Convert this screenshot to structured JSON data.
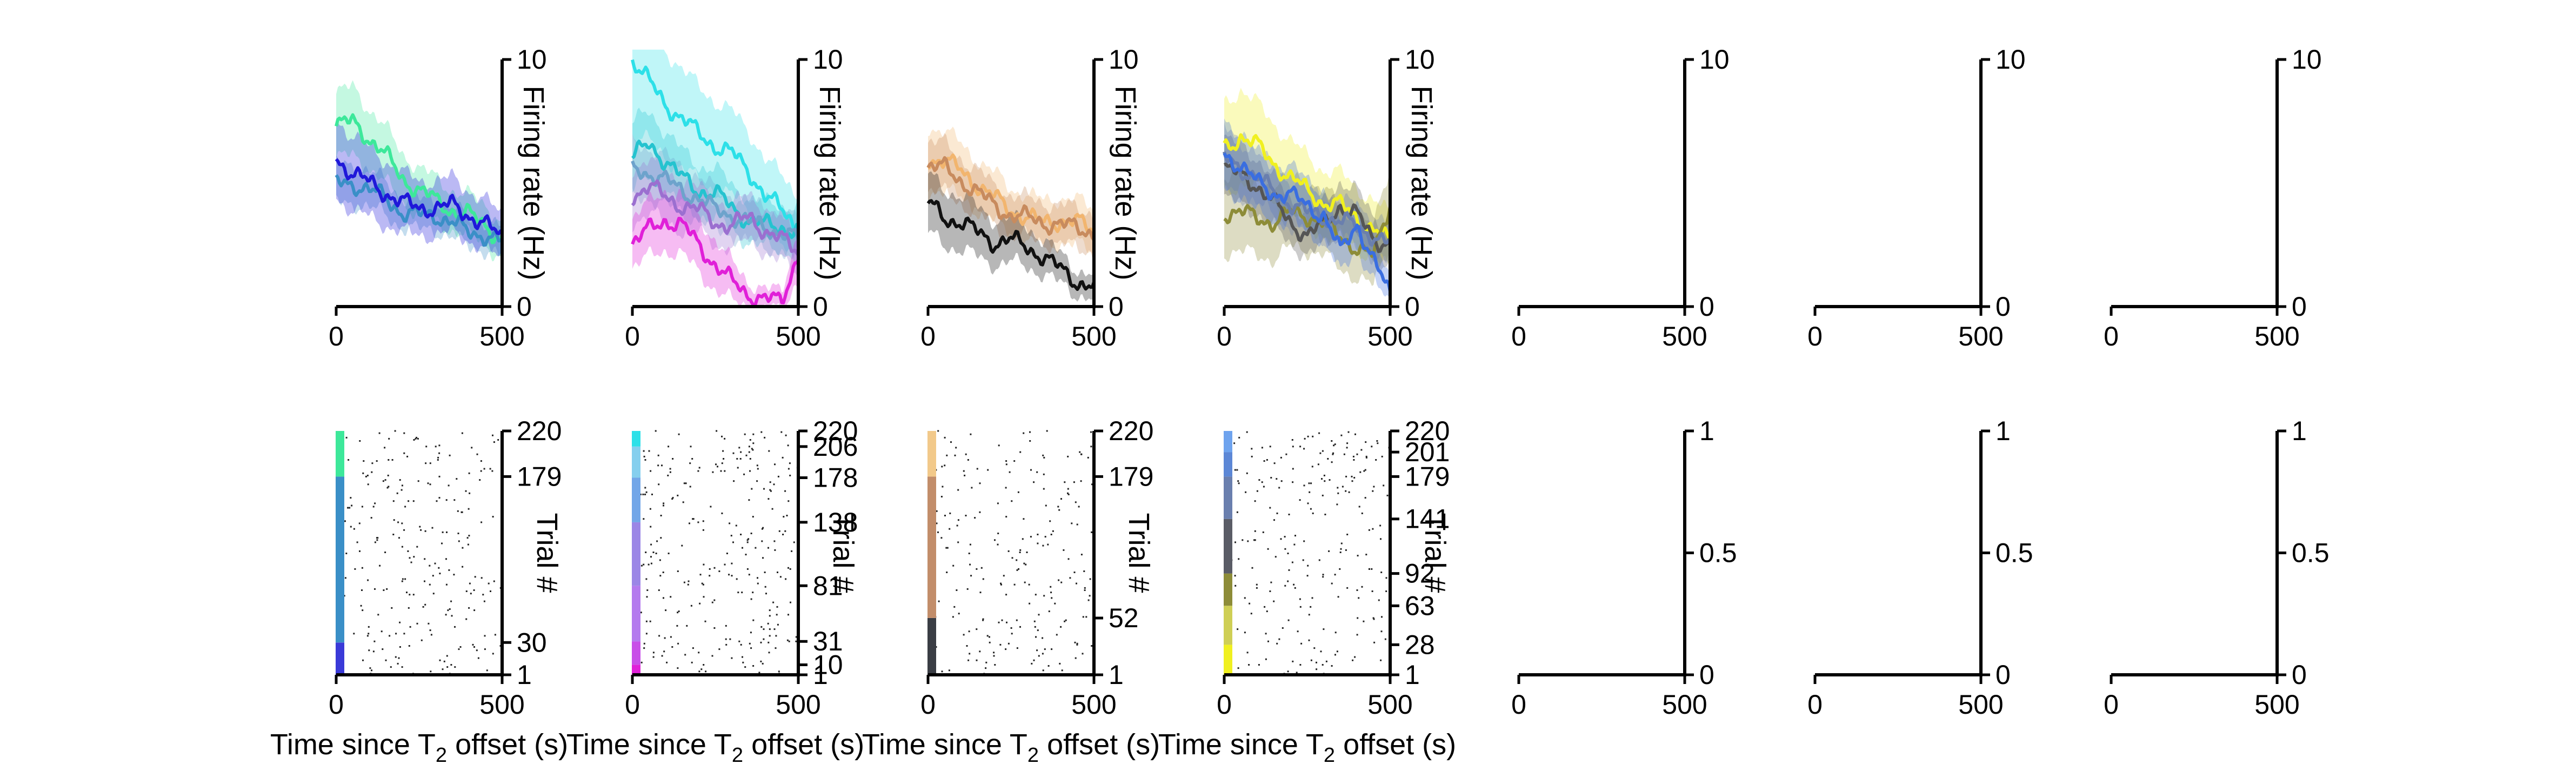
{
  "figure": {
    "firing_rate_ylabel": "Firing rate (Hz)",
    "trial_ylabel": "Trial #",
    "xlabel_main": "Time since T",
    "xlabel_sub": "2",
    "xlabel_tail": " offset (s)"
  },
  "chart_data": [
    {
      "type": "line",
      "panel": "rate-1",
      "xlim": [
        0,
        500
      ],
      "ylim": [
        0,
        10
      ],
      "xticks": [
        0,
        500
      ],
      "yticks": [
        0,
        10
      ],
      "ylabel": "Firing rate (Hz)",
      "x": [
        0,
        50,
        100,
        150,
        200,
        250,
        300,
        350,
        400,
        450,
        500
      ],
      "series": [
        {
          "name": "s1",
          "color": "#3de89a",
          "values": [
            7.3,
            7.5,
            6.8,
            6.1,
            5.2,
            4.7,
            4.3,
            3.9,
            3.7,
            3.3,
            2.7
          ],
          "ci": [
            1.3,
            1.4,
            1.2,
            1.1,
            1.0,
            0.9,
            0.9,
            0.8,
            0.8,
            0.8,
            0.7
          ]
        },
        {
          "name": "s2",
          "color": "#3a8fc7",
          "values": [
            5.0,
            5.0,
            4.7,
            4.4,
            3.8,
            3.7,
            3.7,
            3.4,
            3.0,
            2.9,
            2.6
          ],
          "ci": [
            0.8,
            0.8,
            0.7,
            0.7,
            0.6,
            0.6,
            0.6,
            0.6,
            0.6,
            0.6,
            0.6
          ]
        },
        {
          "name": "s3",
          "color": "#1f18d9",
          "values": [
            6.0,
            5.4,
            5.0,
            4.6,
            4.2,
            4.0,
            4.0,
            4.1,
            3.7,
            3.3,
            2.8
          ],
          "ci": [
            1.6,
            1.5,
            1.4,
            1.3,
            1.2,
            1.1,
            1.1,
            1.1,
            1.0,
            1.0,
            0.9
          ]
        }
      ]
    },
    {
      "type": "line",
      "panel": "rate-2",
      "xlim": [
        0,
        500
      ],
      "ylim": [
        0,
        10
      ],
      "xticks": [
        0,
        500
      ],
      "yticks": [
        0,
        10
      ],
      "ylabel": "Firing rate (Hz)",
      "x": [
        0,
        50,
        100,
        150,
        200,
        250,
        300,
        350,
        400,
        450,
        500
      ],
      "series": [
        {
          "name": "s1",
          "color": "#2de0e8",
          "values": [
            10.0,
            9.1,
            8.2,
            7.6,
            7.0,
            6.5,
            6.2,
            5.5,
            4.5,
            3.9,
            3.2
          ],
          "ci": [
            3.0,
            2.4,
            2.2,
            2.0,
            1.9,
            1.8,
            1.7,
            1.6,
            1.5,
            1.4,
            1.3
          ]
        },
        {
          "name": "s2",
          "color": "#25c3cf",
          "values": [
            6.0,
            6.6,
            5.9,
            5.2,
            4.7,
            4.6,
            4.0,
            3.5,
            3.3,
            3.2,
            3.1
          ],
          "ci": [
            1.4,
            1.3,
            1.2,
            1.1,
            1.0,
            1.0,
            0.9,
            0.9,
            0.9,
            0.9,
            0.9
          ]
        },
        {
          "name": "s3",
          "color": "#6da3cc",
          "values": [
            5.6,
            5.4,
            5.1,
            4.7,
            4.4,
            3.9,
            3.7,
            3.4,
            3.2,
            3.0,
            2.7
          ],
          "ci": [
            1.1,
            1.0,
            1.0,
            0.9,
            0.9,
            0.8,
            0.8,
            0.8,
            0.8,
            0.8,
            0.8
          ]
        },
        {
          "name": "s4",
          "color": "#9b6fd0",
          "values": [
            4.5,
            4.9,
            4.4,
            4.1,
            3.9,
            3.4,
            3.3,
            3.6,
            3.1,
            2.7,
            2.2
          ],
          "ci": [
            1.1,
            1.1,
            1.0,
            1.0,
            0.9,
            0.9,
            0.9,
            0.9,
            0.9,
            0.9,
            0.9
          ]
        },
        {
          "name": "s5",
          "color": "#e020d8",
          "values": [
            2.6,
            3.1,
            3.5,
            3.3,
            2.5,
            1.7,
            1.0,
            0.5,
            0.3,
            0.2,
            2.2
          ],
          "ci": [
            1.0,
            1.1,
            1.2,
            1.2,
            1.1,
            1.0,
            0.8,
            0.5,
            0.4,
            0.4,
            1.0
          ]
        }
      ]
    },
    {
      "type": "line",
      "panel": "rate-3",
      "xlim": [
        0,
        500
      ],
      "ylim": [
        0,
        10
      ],
      "xticks": [
        0,
        500
      ],
      "yticks": [
        0,
        10
      ],
      "ylabel": "Firing rate (Hz)",
      "x": [
        0,
        50,
        100,
        150,
        200,
        250,
        300,
        350,
        400,
        450,
        500
      ],
      "series": [
        {
          "name": "s1",
          "color": "#f2b56e",
          "values": [
            6.0,
            5.9,
            5.5,
            4.9,
            4.4,
            3.9,
            3.6,
            3.4,
            3.5,
            3.4,
            3.1
          ],
          "ci": [
            1.3,
            1.2,
            1.1,
            1.0,
            1.0,
            0.9,
            0.9,
            0.9,
            0.9,
            0.9,
            0.9
          ]
        },
        {
          "name": "s2",
          "color": "#c88b5e",
          "values": [
            5.7,
            5.6,
            5.1,
            4.6,
            4.1,
            3.7,
            3.6,
            3.4,
            3.3,
            3.2,
            3.0
          ],
          "ci": [
            1.0,
            1.0,
            0.9,
            0.9,
            0.8,
            0.8,
            0.8,
            0.8,
            0.8,
            0.8,
            0.8
          ]
        },
        {
          "name": "s3",
          "color": "#111111",
          "values": [
            4.2,
            3.6,
            3.4,
            3.0,
            2.6,
            2.7,
            2.4,
            2.0,
            1.5,
            1.0,
            0.8
          ],
          "ci": [
            1.2,
            1.1,
            1.1,
            1.0,
            0.9,
            0.9,
            0.8,
            0.7,
            0.6,
            0.5,
            0.5
          ]
        }
      ]
    },
    {
      "type": "line",
      "panel": "rate-4",
      "xlim": [
        0,
        500
      ],
      "ylim": [
        0,
        10
      ],
      "xticks": [
        0,
        500
      ],
      "yticks": [
        0,
        10
      ],
      "ylabel": "Firing rate (Hz)",
      "x": [
        0,
        50,
        100,
        150,
        200,
        250,
        300,
        350,
        400,
        450,
        500
      ],
      "series": [
        {
          "name": "s1",
          "color": "#f0f020",
          "values": [
            6.4,
            6.9,
            6.5,
            5.8,
            5.2,
            4.7,
            4.2,
            4.1,
            3.6,
            3.1,
            2.6
          ],
          "ci": [
            1.8,
            1.9,
            1.7,
            1.6,
            1.5,
            1.4,
            1.3,
            1.3,
            1.2,
            1.2,
            1.1
          ]
        },
        {
          "name": "s2",
          "color": "#8d8c38",
          "values": [
            3.8,
            3.8,
            3.6,
            3.4,
            3.8,
            3.7,
            3.4,
            2.8,
            2.4,
            2.0,
            4.2
          ],
          "ci": [
            1.6,
            1.6,
            1.5,
            1.5,
            1.4,
            1.4,
            1.3,
            1.3,
            1.2,
            1.2,
            1.6
          ]
        },
        {
          "name": "s3",
          "color": "#555555",
          "values": [
            5.6,
            5.3,
            4.9,
            4.2,
            3.4,
            2.9,
            3.3,
            4.1,
            3.7,
            2.7,
            2.6
          ],
          "ci": [
            1.2,
            1.2,
            1.1,
            1.0,
            0.9,
            0.8,
            0.9,
            1.0,
            1.0,
            0.9,
            0.9
          ]
        },
        {
          "name": "s4",
          "color": "#6a7fae",
          "values": [
            6.0,
            5.6,
            5.2,
            4.6,
            4.2,
            3.8,
            3.6,
            3.5,
            3.2,
            2.9,
            2.5
          ],
          "ci": [
            1.2,
            1.1,
            1.0,
            1.0,
            0.9,
            0.9,
            0.9,
            0.8,
            0.8,
            0.8,
            0.8
          ]
        },
        {
          "name": "s5",
          "color": "#3a6ee0",
          "values": [
            6.2,
            5.7,
            5.0,
            4.6,
            4.5,
            4.1,
            3.7,
            2.2,
            3.4,
            1.8,
            0.5
          ],
          "ci": [
            1.4,
            1.3,
            1.2,
            1.2,
            1.1,
            1.1,
            1.0,
            0.9,
            1.0,
            0.8,
            0.5
          ]
        }
      ]
    },
    {
      "type": "line",
      "panel": "rate-5",
      "xlim": [
        0,
        500
      ],
      "ylim": [
        0,
        10
      ],
      "xticks": [
        0,
        500
      ],
      "yticks": [
        0,
        10
      ],
      "series": []
    },
    {
      "type": "line",
      "panel": "rate-6",
      "xlim": [
        0,
        500
      ],
      "ylim": [
        0,
        10
      ],
      "xticks": [
        0,
        500
      ],
      "yticks": [
        0,
        10
      ],
      "series": []
    },
    {
      "type": "line",
      "panel": "rate-7",
      "xlim": [
        0,
        500
      ],
      "ylim": [
        0,
        10
      ],
      "xticks": [
        0,
        500
      ],
      "yticks": [
        0,
        10
      ],
      "series": []
    },
    {
      "type": "scatter",
      "panel": "raster-1",
      "xlim": [
        0,
        500
      ],
      "ylim": [
        1,
        220
      ],
      "xticks": [
        0,
        500
      ],
      "yticks": [
        1,
        30,
        179,
        220
      ],
      "ylabel": "Trial #",
      "xlabel": "Time since T2 offset (s)",
      "n_trials": 220,
      "spikes_per_trial": 1.1,
      "trial_groups": [
        {
          "from": 1,
          "to": 30,
          "color": "#3a3ad8"
        },
        {
          "from": 30,
          "to": 179,
          "color": "#3a8fc7"
        },
        {
          "from": 179,
          "to": 220,
          "color": "#3de89a"
        }
      ]
    },
    {
      "type": "scatter",
      "panel": "raster-2",
      "xlim": [
        0,
        500
      ],
      "ylim": [
        1,
        220
      ],
      "xticks": [
        0,
        500
      ],
      "yticks": [
        1,
        10,
        31,
        81,
        138,
        178,
        206,
        220
      ],
      "ylabel": "Trial #",
      "xlabel": "Time since T2 offset (s)",
      "n_trials": 220,
      "spikes_per_trial": 1.3,
      "trial_groups": [
        {
          "from": 1,
          "to": 10,
          "color": "#e020d8"
        },
        {
          "from": 10,
          "to": 31,
          "color": "#c84ee8"
        },
        {
          "from": 31,
          "to": 81,
          "color": "#b47aee"
        },
        {
          "from": 81,
          "to": 138,
          "color": "#9b86e6"
        },
        {
          "from": 138,
          "to": 178,
          "color": "#72a6e8"
        },
        {
          "from": 178,
          "to": 206,
          "color": "#85cfee"
        },
        {
          "from": 206,
          "to": 220,
          "color": "#2de0e8"
        }
      ]
    },
    {
      "type": "scatter",
      "panel": "raster-3",
      "xlim": [
        0,
        500
      ],
      "ylim": [
        1,
        220
      ],
      "xticks": [
        0,
        500
      ],
      "yticks": [
        1,
        52,
        179,
        220
      ],
      "ylabel": "Trial #",
      "xlabel": "Time since T2 offset (s)",
      "n_trials": 220,
      "spikes_per_trial": 1.0,
      "trial_groups": [
        {
          "from": 1,
          "to": 52,
          "color": "#3a3d44"
        },
        {
          "from": 52,
          "to": 179,
          "color": "#c28d6a"
        },
        {
          "from": 179,
          "to": 220,
          "color": "#f2c98a"
        }
      ]
    },
    {
      "type": "scatter",
      "panel": "raster-4",
      "xlim": [
        0,
        500
      ],
      "ylim": [
        1,
        220
      ],
      "xticks": [
        0,
        500
      ],
      "yticks": [
        1,
        28,
        63,
        92,
        141,
        179,
        201,
        220
      ],
      "ylabel": "Trial #",
      "xlabel": "Time since T2 offset (s)",
      "n_trials": 220,
      "spikes_per_trial": 1.1,
      "trial_groups": [
        {
          "from": 1,
          "to": 28,
          "color": "#f0f020"
        },
        {
          "from": 28,
          "to": 63,
          "color": "#cfcf55"
        },
        {
          "from": 63,
          "to": 92,
          "color": "#8d8c38"
        },
        {
          "from": 92,
          "to": 141,
          "color": "#5a5c66"
        },
        {
          "from": 141,
          "to": 179,
          "color": "#6a7fae"
        },
        {
          "from": 179,
          "to": 201,
          "color": "#5c87d6"
        },
        {
          "from": 201,
          "to": 220,
          "color": "#6ea3ee"
        }
      ]
    },
    {
      "type": "scatter",
      "panel": "raster-5",
      "xlim": [
        0,
        500
      ],
      "ylim": [
        0,
        1
      ],
      "xticks": [
        0,
        500
      ],
      "yticks": [
        0,
        0.5,
        1
      ],
      "trial_groups": []
    },
    {
      "type": "scatter",
      "panel": "raster-6",
      "xlim": [
        0,
        500
      ],
      "ylim": [
        0,
        1
      ],
      "xticks": [
        0,
        500
      ],
      "yticks": [
        0,
        0.5,
        1
      ],
      "trial_groups": []
    },
    {
      "type": "scatter",
      "panel": "raster-7",
      "xlim": [
        0,
        500
      ],
      "ylim": [
        0,
        1
      ],
      "xticks": [
        0,
        500
      ],
      "yticks": [
        0,
        0.5,
        1
      ],
      "trial_groups": []
    }
  ]
}
